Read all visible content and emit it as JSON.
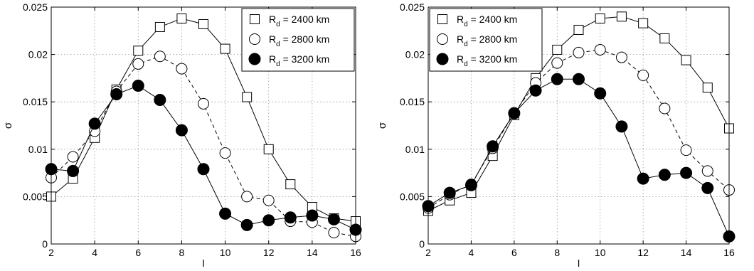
{
  "chart_data": [
    {
      "type": "line",
      "xlabel": "l",
      "ylabel": "σ",
      "xlim": [
        2,
        16
      ],
      "ylim": [
        0,
        0.025
      ],
      "xticks": [
        2,
        4,
        6,
        8,
        10,
        12,
        14,
        16
      ],
      "yticks": [
        0,
        0.005,
        0.01,
        0.015,
        0.02,
        0.025
      ],
      "ytick_labels": [
        "0",
        "0.005",
        "0.01",
        "0.015",
        "0.02",
        "0.025"
      ],
      "grid": true,
      "legend_position": "top-right",
      "x": [
        2,
        3,
        4,
        5,
        6,
        7,
        8,
        9,
        10,
        11,
        12,
        13,
        14,
        15,
        16
      ],
      "series": [
        {
          "name_main": "R",
          "name_sub": "d",
          "name_rest": " = 2400 km",
          "marker": "square",
          "line": "solid",
          "values": [
            0.005,
            0.0069,
            0.0112,
            0.0163,
            0.0204,
            0.0229,
            0.0238,
            0.0232,
            0.0206,
            0.0155,
            0.01,
            0.0063,
            0.0039,
            0.0027,
            0.0024
          ]
        },
        {
          "name_main": "R",
          "name_sub": "d",
          "name_rest": " = 2800 km",
          "marker": "open-circle",
          "line": "dashed",
          "values": [
            0.007,
            0.0092,
            0.0119,
            0.0161,
            0.019,
            0.0198,
            0.0185,
            0.0148,
            0.0096,
            0.005,
            0.0046,
            0.0024,
            0.0023,
            0.0012,
            0.0008
          ]
        },
        {
          "name_main": "R",
          "name_sub": "d",
          "name_rest": " = 3200 km",
          "marker": "filled-circle",
          "line": "solid",
          "values": [
            0.0079,
            0.0077,
            0.0127,
            0.0158,
            0.0167,
            0.0152,
            0.012,
            0.0079,
            0.0032,
            0.002,
            0.0025,
            0.0028,
            0.003,
            0.0026,
            0.0015
          ]
        }
      ]
    },
    {
      "type": "line",
      "xlabel": "l",
      "ylabel": "σ",
      "xlim": [
        2,
        16
      ],
      "ylim": [
        0,
        0.025
      ],
      "xticks": [
        2,
        4,
        6,
        8,
        10,
        12,
        14,
        16
      ],
      "yticks": [
        0,
        0.005,
        0.01,
        0.015,
        0.02,
        0.025
      ],
      "ytick_labels": [
        "0",
        "0.005",
        "0.01",
        "0.015",
        "0.02",
        "0.025"
      ],
      "grid": true,
      "legend_position": "top-left",
      "x": [
        2,
        3,
        4,
        5,
        6,
        7,
        8,
        9,
        10,
        11,
        12,
        13,
        14,
        15,
        16
      ],
      "series": [
        {
          "name_main": "R",
          "name_sub": "d",
          "name_rest": " = 2400 km",
          "marker": "square",
          "line": "solid",
          "values": [
            0.0035,
            0.0046,
            0.0054,
            0.0093,
            0.0136,
            0.0175,
            0.0205,
            0.0226,
            0.0238,
            0.024,
            0.0233,
            0.0217,
            0.0194,
            0.0165,
            0.0122
          ]
        },
        {
          "name_main": "R",
          "name_sub": "d",
          "name_rest": " = 2800 km",
          "marker": "open-circle",
          "line": "dashed",
          "values": [
            0.0038,
            0.0052,
            0.0063,
            0.0101,
            0.0138,
            0.017,
            0.0191,
            0.0202,
            0.0205,
            0.0197,
            0.0178,
            0.0143,
            0.0099,
            0.0077,
            0.0057
          ]
        },
        {
          "name_main": "R",
          "name_sub": "d",
          "name_rest": " = 3200 km",
          "marker": "filled-circle",
          "line": "solid",
          "values": [
            0.004,
            0.0054,
            0.0062,
            0.0103,
            0.0138,
            0.0162,
            0.0174,
            0.0174,
            0.0159,
            0.0124,
            0.0069,
            0.0073,
            0.0075,
            0.0059,
            0.0008
          ]
        }
      ]
    }
  ]
}
